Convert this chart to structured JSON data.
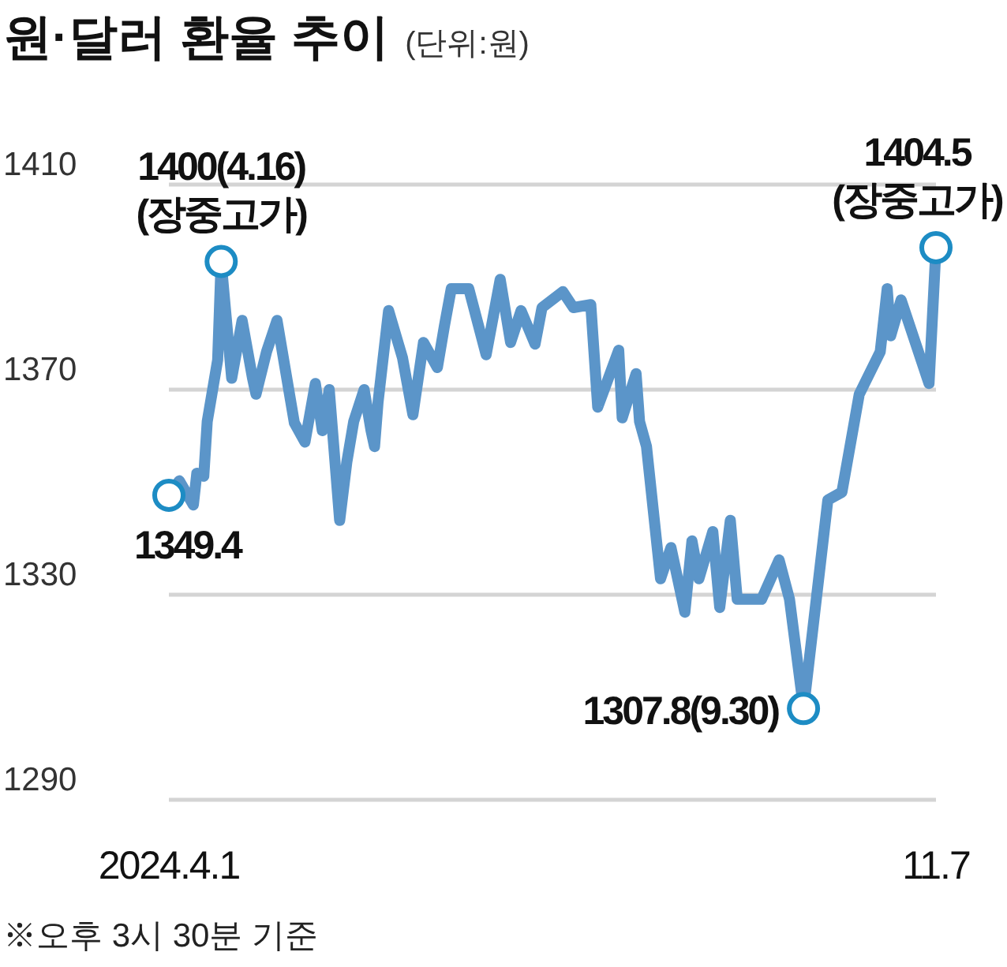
{
  "chart_data": {
    "type": "line",
    "title": "원·달러 환율 추이",
    "subtitle": "(단위:원)",
    "x": [
      "2024-04-01",
      "2024-04-04",
      "2024-04-08",
      "2024-04-09",
      "2024-04-11",
      "2024-04-12",
      "2024-04-15",
      "2024-04-16",
      "2024-04-19",
      "2024-04-22",
      "2024-04-25",
      "2024-04-26",
      "2024-04-29",
      "2024-05-02",
      "2024-05-07",
      "2024-05-10",
      "2024-05-13",
      "2024-05-15",
      "2024-05-17",
      "2024-05-20",
      "2024-05-22",
      "2024-05-24",
      "2024-05-27",
      "2024-05-29",
      "2024-05-30",
      "2024-05-31",
      "2024-06-03",
      "2024-06-07",
      "2024-06-10",
      "2024-06-13",
      "2024-06-17",
      "2024-06-19",
      "2024-06-21",
      "2024-06-26",
      "2024-07-01",
      "2024-07-05",
      "2024-07-08",
      "2024-07-11",
      "2024-07-15",
      "2024-07-17",
      "2024-07-23",
      "2024-07-26",
      "2024-07-31",
      "2024-08-02",
      "2024-08-08",
      "2024-08-09",
      "2024-08-13",
      "2024-08-14",
      "2024-08-16",
      "2024-08-20",
      "2024-08-23",
      "2024-08-27",
      "2024-08-29",
      "2024-08-31",
      "2024-09-04",
      "2024-09-06",
      "2024-09-09",
      "2024-09-11",
      "2024-09-18",
      "2024-09-23",
      "2024-09-26",
      "2024-09-30",
      "2024-10-07",
      "2024-10-11",
      "2024-10-16",
      "2024-10-22",
      "2024-10-24",
      "2024-10-25",
      "2024-10-28",
      "2024-11-05",
      "2024-11-07"
    ],
    "series": [
      {
        "color": "#5b95c9",
        "values": [
          1349.4,
          1352.2,
          1347.5,
          1353.7,
          1353.1,
          1363.8,
          1375.8,
          1395,
          1372.2,
          1383.5,
          1372.2,
          1369.1,
          1377.4,
          1383.5,
          1363.5,
          1359.8,
          1371.2,
          1362.0,
          1370.0,
          1344.5,
          1355.8,
          1363.8,
          1370.0,
          1362.0,
          1358.9,
          1367.5,
          1385.4,
          1376.2,
          1365.1,
          1379.2,
          1374.3,
          1382.3,
          1389.7,
          1389.7,
          1376.8,
          1391.5,
          1379.2,
          1385.4,
          1378.9,
          1386.0,
          1389.1,
          1386.0,
          1386.6,
          1366.6,
          1377.7,
          1364.5,
          1373.1,
          1363.8,
          1358.9,
          1333.1,
          1339.2,
          1326.6,
          1340.5,
          1333.1,
          1342.3,
          1327.5,
          1344.5,
          1329.1,
          1329.1,
          1336.8,
          1329.1,
          1307.8,
          1348.5,
          1350.0,
          1369.1,
          1377.4,
          1389.7,
          1380.5,
          1387.5,
          1371.2,
          1397.7
        ]
      }
    ],
    "ylim": [
      1290,
      1410
    ],
    "yticks": [
      1290,
      1330,
      1370,
      1410
    ],
    "xlim": [
      "2024-04-01",
      "2024-11-07"
    ],
    "xticks": [
      {
        "value": "2024-04-01",
        "label": "2024.4.1"
      },
      {
        "value": "2024-11-07",
        "label": "11.7"
      }
    ],
    "grid": "y",
    "marker": "none",
    "line_style": "solid",
    "annotations": [
      {
        "text": "1349.4",
        "x": "2024-04-01",
        "y": 1349.4
      },
      {
        "text": "1400(4.16)\n(장중고가)",
        "x": "2024-04-16",
        "y": 1395
      },
      {
        "text": "1307.8(9.30)",
        "x": "2024-09-30",
        "y": 1307.8
      },
      {
        "text": "1404.5\n(장중고가)",
        "x": "2024-11-07",
        "y": 1397.7
      },
      "※오후 3시 30분 기준"
    ]
  }
}
